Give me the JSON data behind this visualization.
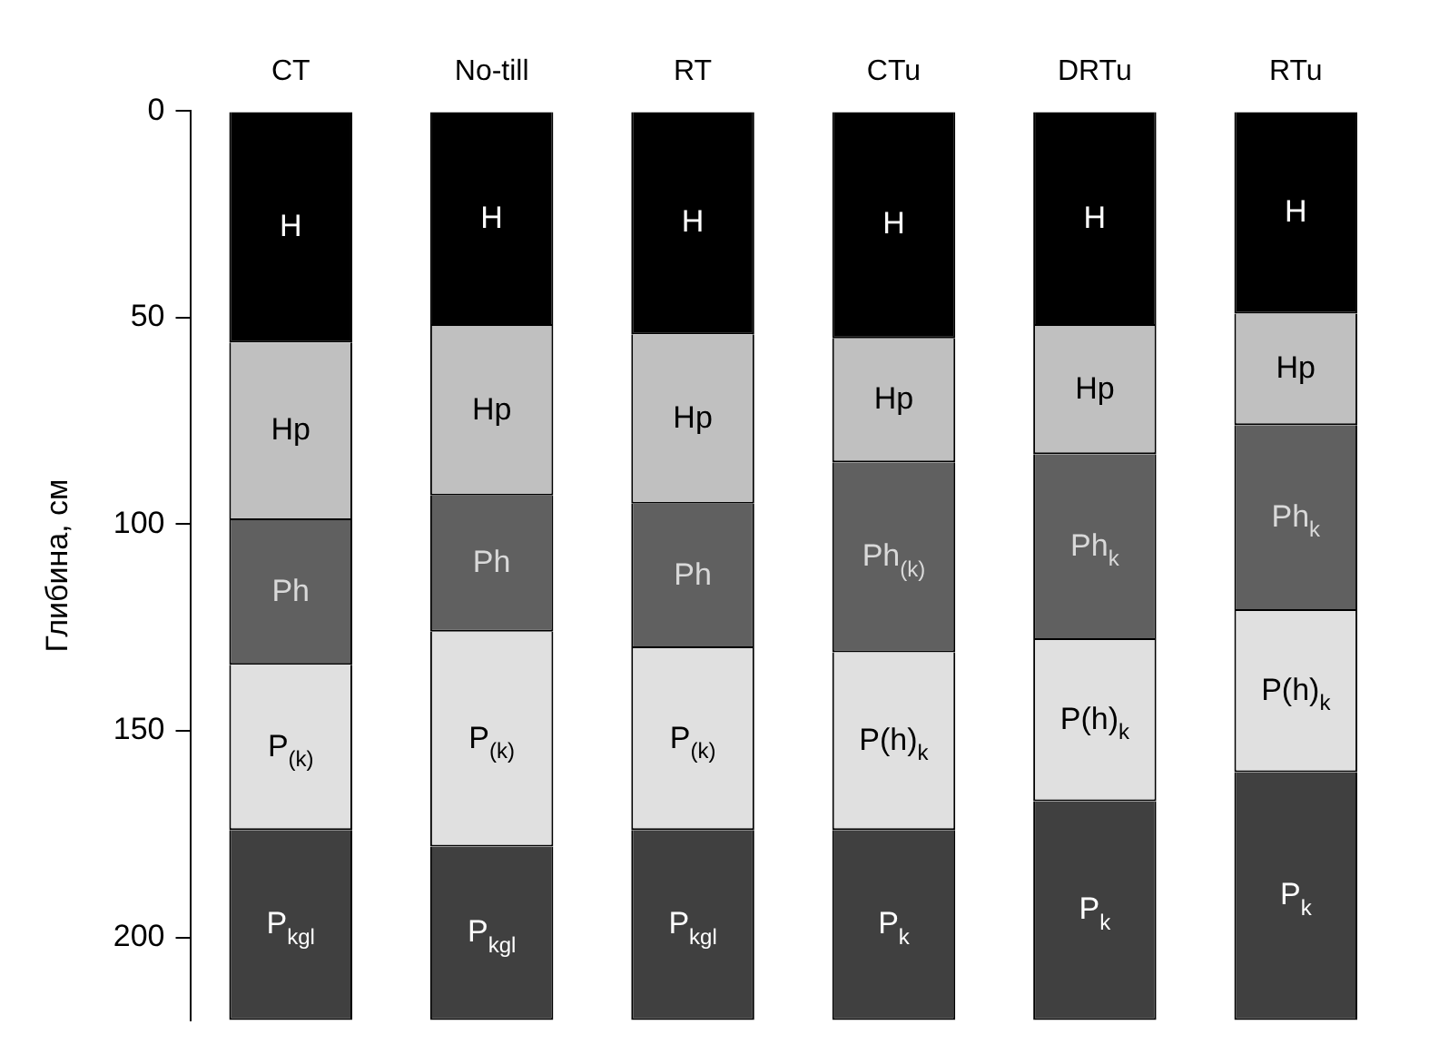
{
  "chart_data": {
    "type": "bar",
    "stacked": true,
    "ylabel": "Глибина, см",
    "categories": [
      "CT",
      "No-till",
      "RT",
      "CTu",
      "DRTu",
      "RTu"
    ],
    "series": [
      {
        "color": "#000000",
        "values": [
          56,
          52,
          54,
          55,
          52,
          49
        ],
        "value_labels": [
          "H",
          "H",
          "H",
          "H",
          "H",
          "H"
        ]
      },
      {
        "color": "#c0c0c0",
        "values": [
          43,
          41,
          41,
          30,
          31,
          27
        ],
        "value_labels": [
          "Hp",
          "Hp",
          "Hp",
          "Hp",
          "Hp",
          "Hp"
        ]
      },
      {
        "color": "#606060",
        "values": [
          35,
          33,
          35,
          46,
          45,
          45
        ],
        "value_labels": [
          "Ph",
          "Ph",
          "Ph",
          "Ph$_{(k)}$",
          "Ph$_{k}$",
          "Ph$_{k}$"
        ]
      },
      {
        "color": "#e0e0e0",
        "values": [
          40,
          52,
          44,
          43,
          39,
          39
        ],
        "value_labels": [
          "P$_{(k)}$",
          "P$_{(k)}$",
          "P$_{(k)}$",
          "P(h)$_{k}$",
          "P(h)$_{k}$",
          "P(h)$_{k}$"
        ]
      },
      {
        "color": "#404040",
        "values": [
          46,
          42,
          46,
          46,
          53,
          60
        ],
        "value_labels": [
          "P$_{kgl}$",
          "P$_{kgl}$",
          "P$_{kgl}$",
          "P$_{k}$",
          "P$_{k}$",
          "P$_{k}$"
        ]
      }
    ],
    "ylim": [
      220,
      0
    ],
    "yticks": [
      0,
      50,
      100,
      150,
      200
    ],
    "grid": false,
    "legend": false
  }
}
